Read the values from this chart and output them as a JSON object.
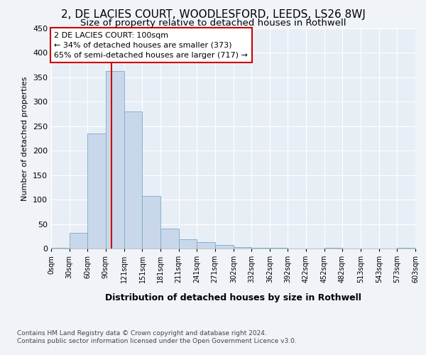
{
  "title": "2, DE LACIES COURT, WOODLESFORD, LEEDS, LS26 8WJ",
  "subtitle": "Size of property relative to detached houses in Rothwell",
  "xlabel": "Distribution of detached houses by size in Rothwell",
  "ylabel": "Number of detached properties",
  "bin_edges": [
    0,
    30,
    60,
    90,
    121,
    151,
    181,
    211,
    241,
    271,
    302,
    332,
    362,
    392,
    422,
    452,
    482,
    513,
    543,
    573,
    603
  ],
  "bar_heights": [
    2,
    32,
    235,
    363,
    280,
    107,
    40,
    19,
    13,
    7,
    3,
    1,
    1,
    0,
    0,
    1,
    0,
    0,
    0,
    1
  ],
  "bar_color": "#c8d8ea",
  "bar_edge_color": "#7aaac8",
  "property_size": 100,
  "red_line_color": "#cc0000",
  "annotation_text": "2 DE LACIES COURT: 100sqm\n← 34% of detached houses are smaller (373)\n65% of semi-detached houses are larger (717) →",
  "annotation_box_color": "#ffffff",
  "annotation_box_edge": "#cc0000",
  "ylim": [
    0,
    450
  ],
  "yticks": [
    0,
    50,
    100,
    150,
    200,
    250,
    300,
    350,
    400,
    450
  ],
  "footer_line1": "Contains HM Land Registry data © Crown copyright and database right 2024.",
  "footer_line2": "Contains public sector information licensed under the Open Government Licence v3.0.",
  "bg_color": "#f0f4f8",
  "plot_bg_color": "#e8eef5",
  "grid_color": "#ffffff",
  "title_fontsize": 11,
  "subtitle_fontsize": 9.5
}
